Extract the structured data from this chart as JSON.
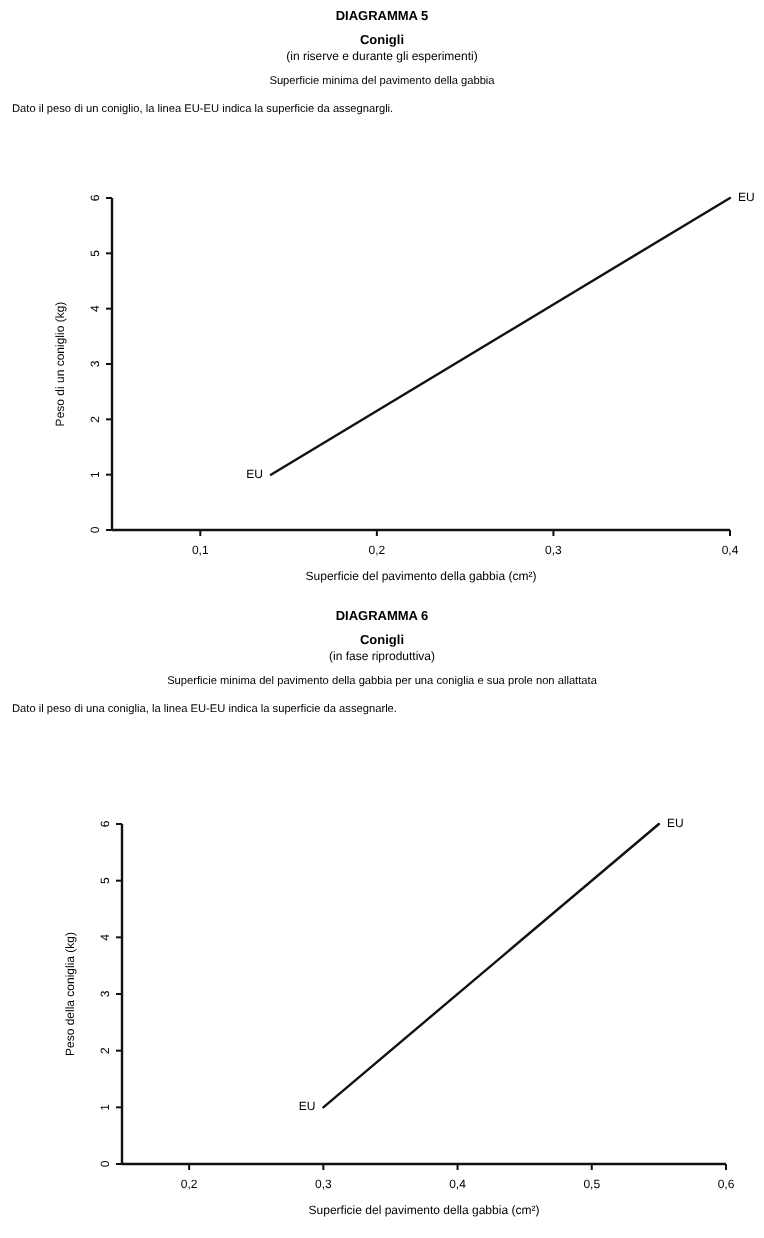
{
  "chart_data": [
    {
      "type": "line",
      "title": "DIAGRAMMA 5",
      "subtitle": "Conigli\n(in riserve e durante gli esperimenti)",
      "annotations": [
        "Superficie minima del pavimento della gabbia",
        "Dato il peso di un coniglio, la linea EU-EU indica la superficie da assegnargli.",
        {
          "text": "EU",
          "x": 0.14,
          "y": 1
        },
        {
          "text": "EU",
          "x": 0.4,
          "y": 6
        }
      ],
      "xlabel": "Superficie del pavimento della gabbia (cm²)",
      "ylabel": "Peso di un coniglio (kg)",
      "x": [
        0.14,
        0.4
      ],
      "series": [
        {
          "color": "#111111",
          "values": [
            1,
            6
          ]
        }
      ],
      "xlim": [
        0.05,
        0.4
      ],
      "xticks": [
        {
          "value": 0.1,
          "label": "0,1"
        },
        {
          "value": 0.2,
          "label": "0,2"
        },
        {
          "value": 0.3,
          "label": "0,3"
        },
        {
          "value": 0.4,
          "label": "0,4"
        }
      ],
      "ylim": [
        0,
        6
      ],
      "yticks": [
        0,
        1,
        2,
        3,
        4,
        5,
        6
      ]
    },
    {
      "type": "line",
      "title": "DIAGRAMMA 6",
      "subtitle": "Conigli\n(in fase riproduttiva)",
      "annotations": [
        "Superficie minima del pavimento della gabbia per una coniglia e sua prole non allattata",
        "Dato il peso di una coniglia, la linea EU-EU indica la superficie da assegnarle.",
        {
          "text": "EU",
          "x": 0.3,
          "y": 1
        },
        {
          "text": "EU",
          "x": 0.55,
          "y": 6
        }
      ],
      "xlabel": "Superficie del pavimento della gabbia (cm²)",
      "ylabel": "Peso della coniglia (kg)",
      "x": [
        0.3,
        0.55
      ],
      "series": [
        {
          "color": "#111111",
          "values": [
            1,
            6
          ]
        }
      ],
      "xlim": [
        0.15,
        0.6
      ],
      "xticks": [
        {
          "value": 0.2,
          "label": "0,2"
        },
        {
          "value": 0.3,
          "label": "0,3"
        },
        {
          "value": 0.4,
          "label": "0,4"
        },
        {
          "value": 0.5,
          "label": "0,5"
        },
        {
          "value": 0.6,
          "label": "0,6"
        }
      ],
      "ylim": [
        0,
        6
      ],
      "yticks": [
        0,
        1,
        2,
        3,
        4,
        5,
        6
      ]
    }
  ]
}
